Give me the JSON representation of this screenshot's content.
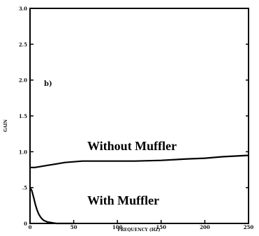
{
  "chart_data": {
    "type": "line",
    "panel_label": "b)",
    "xlabel": "FREQUENCY (HZ)",
    "ylabel": "GAIN",
    "xlim": [
      0,
      250
    ],
    "ylim": [
      0,
      3.0
    ],
    "x_ticks": [
      0,
      50,
      100,
      150,
      200,
      250
    ],
    "x_tick_labels": [
      "0",
      "50",
      "100",
      "150",
      "200",
      "250"
    ],
    "y_ticks": [
      0,
      0.5,
      1.0,
      1.5,
      2.0,
      2.5,
      3.0
    ],
    "y_tick_labels": [
      "0",
      ".5",
      "1.0",
      "1.5",
      "2.0",
      "2.5",
      "3.0"
    ],
    "grid": false,
    "series": [
      {
        "name": "Without Muffler",
        "x": [
          0,
          5,
          10,
          20,
          30,
          40,
          50,
          60,
          70,
          80,
          100,
          120,
          150,
          180,
          200,
          220,
          250
        ],
        "y": [
          0.78,
          0.78,
          0.79,
          0.81,
          0.83,
          0.85,
          0.86,
          0.87,
          0.87,
          0.87,
          0.87,
          0.87,
          0.88,
          0.9,
          0.91,
          0.93,
          0.95
        ]
      },
      {
        "name": "With Muffler",
        "x": [
          0,
          2,
          4,
          6,
          8,
          10,
          12,
          14,
          16,
          18,
          20,
          25,
          30,
          40,
          50
        ],
        "y": [
          0.5,
          0.46,
          0.37,
          0.27,
          0.19,
          0.13,
          0.09,
          0.06,
          0.04,
          0.03,
          0.02,
          0.01,
          0.0,
          0.0,
          0.0
        ]
      }
    ]
  }
}
